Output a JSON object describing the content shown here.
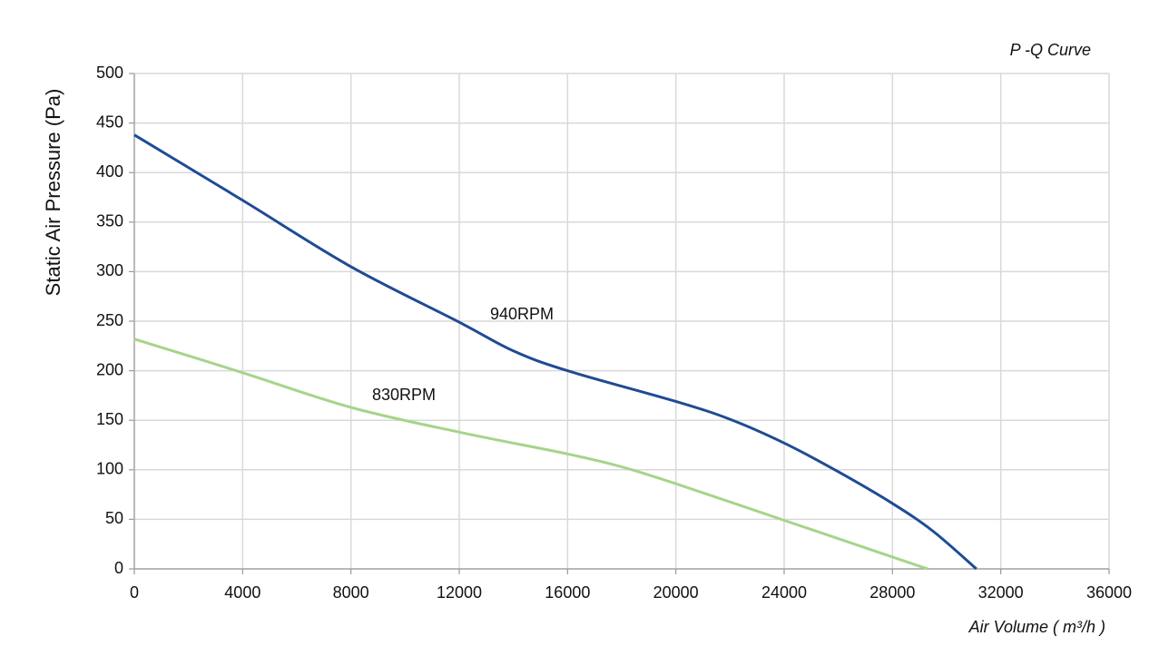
{
  "chart_data": {
    "type": "line",
    "title": "P -Q Curve",
    "x_label": "Air Volume ( m³/h )",
    "y_label": "Static Air Pressure  (Pa)",
    "series": [
      {
        "name": "940RPM",
        "color": "#1f4b94",
        "x": [
          0,
          4000,
          8000,
          12000,
          14000,
          16000,
          20000,
          22000,
          24000,
          26000,
          28000,
          29500,
          31100
        ],
        "values": [
          438,
          372,
          305,
          249,
          220,
          200,
          169,
          151,
          127,
          98,
          66,
          38,
          0
        ]
      },
      {
        "name": "830RPM",
        "color": "#a6d48a",
        "x": [
          0,
          4000,
          8000,
          12000,
          16000,
          18000,
          20000,
          24000,
          28000,
          29300
        ],
        "values": [
          232,
          198,
          163,
          138,
          116,
          103,
          86,
          49,
          12,
          0
        ]
      }
    ],
    "xlim": [
      0,
      36000
    ],
    "xticks": [
      0,
      4000,
      8000,
      12000,
      16000,
      20000,
      24000,
      28000,
      32000,
      36000
    ],
    "ylim": [
      0,
      500
    ],
    "yticks": [
      0,
      50,
      100,
      150,
      200,
      250,
      300,
      350,
      400,
      450,
      500
    ],
    "grid": true
  }
}
